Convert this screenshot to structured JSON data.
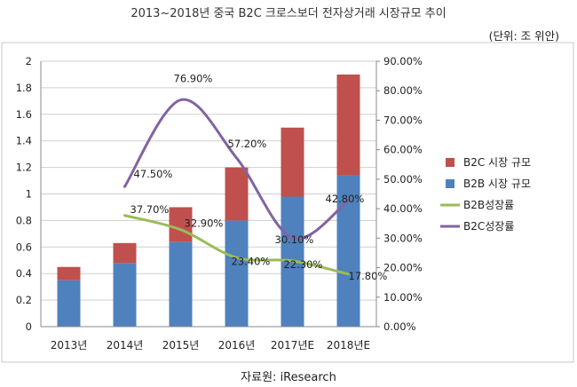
{
  "title": "2013~2018년 중국 B2C 크로스보더 전자상거래 시장규모 추이",
  "unit": "(단위: 조 위안)",
  "source": "자료원: iResearch",
  "colors": {
    "b2c_bar": "#c0504d",
    "b2b_bar": "#4f81bd",
    "b2b_growth_line": "#9bbb59",
    "b2c_growth_line": "#8064a2",
    "grid": "#cfcfcf",
    "axis": "#888888"
  },
  "chart_data": {
    "type": "bar",
    "stacked": true,
    "categories": [
      "2013년",
      "2014년",
      "2015년",
      "2016년",
      "2017년E",
      "2018년E"
    ],
    "y_left": {
      "lim": [
        0,
        2
      ],
      "ticks": [
        "0",
        "0.2",
        "0.4",
        "0.6",
        "0.8",
        "1",
        "1.2",
        "1.4",
        "1.6",
        "1.8",
        "2"
      ]
    },
    "y_right": {
      "lim": [
        0,
        90
      ],
      "ticks": [
        "0.00%",
        "10.00%",
        "20.00%",
        "30.00%",
        "40.00%",
        "50.00%",
        "60.00%",
        "70.00%",
        "80.00%",
        "90.00%"
      ]
    },
    "series": [
      {
        "name": "B2B 시장 규모",
        "kind": "bar",
        "axis": "left",
        "values": [
          0.35,
          0.48,
          0.64,
          0.8,
          0.98,
          1.14
        ]
      },
      {
        "name": "B2C 시장 규모",
        "kind": "bar",
        "axis": "left",
        "values": [
          0.1,
          0.15,
          0.26,
          0.4,
          0.52,
          0.76
        ]
      },
      {
        "name": "B2B성장률",
        "kind": "line",
        "axis": "right",
        "values": [
          null,
          37.7,
          32.9,
          23.4,
          22.3,
          17.8
        ],
        "labels": [
          null,
          "37.70%",
          "32.90%",
          "23.40%",
          "22.30%",
          "17.80%"
        ]
      },
      {
        "name": "B2C성장률",
        "kind": "line",
        "axis": "right",
        "values": [
          null,
          47.5,
          76.9,
          57.2,
          30.1,
          42.8
        ],
        "labels": [
          null,
          "47.50%",
          "76.90%",
          "57.20%",
          "30.10%",
          "42.80%"
        ]
      }
    ],
    "legend": {
      "position": "right",
      "order": [
        "B2C 시장 규모",
        "B2B 시장 규모",
        "B2B성장률",
        "B2C성장률"
      ]
    },
    "grid": true
  }
}
